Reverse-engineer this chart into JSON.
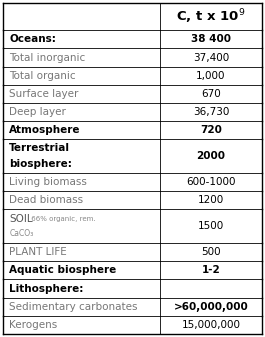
{
  "rows": [
    {
      "label": "",
      "value": "C, t x 10$^9$",
      "bold_label": false,
      "bold_value": true,
      "is_header_row": true,
      "label_color": "#000000",
      "value_color": "#000000"
    },
    {
      "label": "Oceans:",
      "value": "38 400",
      "bold_label": true,
      "bold_value": true,
      "is_header_row": false,
      "label_color": "#000000",
      "value_color": "#000000"
    },
    {
      "label": "Total inorganic",
      "value": "37,400",
      "bold_label": false,
      "bold_value": false,
      "is_header_row": false,
      "label_color": "#777777",
      "value_color": "#000000"
    },
    {
      "label": "Total organic",
      "value": "1,000",
      "bold_label": false,
      "bold_value": false,
      "is_header_row": false,
      "label_color": "#777777",
      "value_color": "#000000"
    },
    {
      "label": "Surface layer",
      "value": "670",
      "bold_label": false,
      "bold_value": false,
      "is_header_row": false,
      "label_color": "#777777",
      "value_color": "#000000"
    },
    {
      "label": "Deep layer",
      "value": "36,730",
      "bold_label": false,
      "bold_value": false,
      "is_header_row": false,
      "label_color": "#777777",
      "value_color": "#000000"
    },
    {
      "label": "Atmosphere",
      "value": "720",
      "bold_label": true,
      "bold_value": true,
      "is_header_row": false,
      "label_color": "#000000",
      "value_color": "#000000"
    },
    {
      "label": "Terrestrial\nbiosphere:",
      "value": "2000",
      "bold_label": true,
      "bold_value": true,
      "is_header_row": false,
      "label_color": "#000000",
      "value_color": "#000000"
    },
    {
      "label": "Living biomass",
      "value": "600-1000",
      "bold_label": false,
      "bold_value": false,
      "is_header_row": false,
      "label_color": "#777777",
      "value_color": "#000000"
    },
    {
      "label": "Dead biomass",
      "value": "1200",
      "bold_label": false,
      "bold_value": false,
      "is_header_row": false,
      "label_color": "#777777",
      "value_color": "#000000"
    },
    {
      "label": "SOIL_SPECIAL",
      "value": "1500",
      "bold_label": false,
      "bold_value": false,
      "is_header_row": false,
      "label_color": "#777777",
      "value_color": "#000000"
    },
    {
      "label": "PLANT LIFE",
      "value": "500",
      "bold_label": false,
      "bold_value": false,
      "is_header_row": false,
      "label_color": "#777777",
      "value_color": "#000000"
    },
    {
      "label": "Aquatic biosphere",
      "value": "1-2",
      "bold_label": true,
      "bold_value": true,
      "is_header_row": false,
      "label_color": "#000000",
      "value_color": "#000000"
    },
    {
      "label": "Lithosphere:",
      "value": "",
      "bold_label": true,
      "bold_value": false,
      "is_header_row": false,
      "label_color": "#000000",
      "value_color": "#000000"
    },
    {
      "label": "Sedimentary carbonates",
      "value": ">60,000,000",
      "bold_label": false,
      "bold_value": true,
      "is_header_row": false,
      "label_color": "#777777",
      "value_color": "#000000"
    },
    {
      "label": "Kerogens",
      "value": "15,000,000",
      "bold_label": false,
      "bold_value": false,
      "is_header_row": false,
      "label_color": "#777777",
      "value_color": "#000000"
    }
  ],
  "row_heights": [
    1.5,
    1.0,
    1.0,
    1.0,
    1.0,
    1.0,
    1.0,
    1.9,
    1.0,
    1.0,
    1.9,
    1.0,
    1.0,
    1.0,
    1.0,
    1.0
  ],
  "col_split": 0.605,
  "bg_color": "#ffffff",
  "border_color": "#000000"
}
